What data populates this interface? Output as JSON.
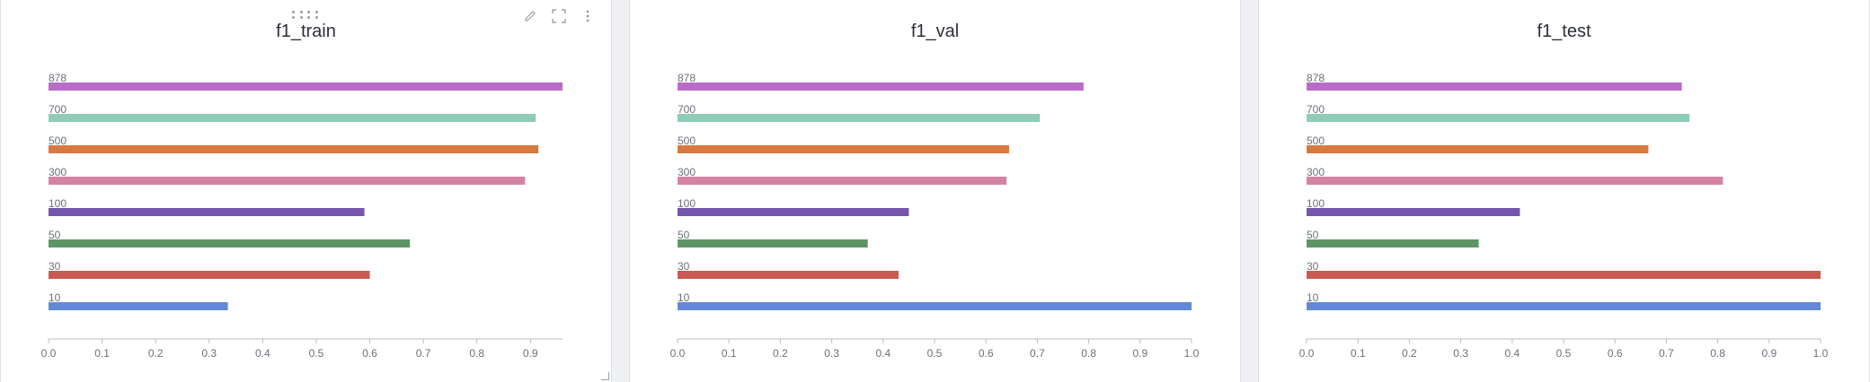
{
  "chart_data": [
    {
      "type": "bar",
      "orientation": "horizontal",
      "title": "f1_train",
      "categories": [
        "878",
        "700",
        "500",
        "300",
        "100",
        "50",
        "30",
        "10"
      ],
      "values": [
        0.96,
        0.91,
        0.915,
        0.89,
        0.59,
        0.675,
        0.6,
        0.335
      ],
      "xlim": [
        0,
        0.96
      ],
      "xticks": [
        "0.0",
        "0.1",
        "0.2",
        "0.3",
        "0.4",
        "0.5",
        "0.6",
        "0.7",
        "0.8",
        "0.9"
      ],
      "xtick_values": [
        0,
        0.1,
        0.2,
        0.3,
        0.4,
        0.5,
        0.6,
        0.7,
        0.8,
        0.9
      ]
    },
    {
      "type": "bar",
      "orientation": "horizontal",
      "title": "f1_val",
      "categories": [
        "878",
        "700",
        "500",
        "300",
        "100",
        "50",
        "30",
        "10"
      ],
      "values": [
        0.79,
        0.705,
        0.645,
        0.64,
        0.45,
        0.37,
        0.43,
        1.0
      ],
      "xlim": [
        0,
        1.0
      ],
      "xticks": [
        "0.0",
        "0.1",
        "0.2",
        "0.3",
        "0.4",
        "0.5",
        "0.6",
        "0.7",
        "0.8",
        "0.9",
        "1.0"
      ],
      "xtick_values": [
        0,
        0.1,
        0.2,
        0.3,
        0.4,
        0.5,
        0.6,
        0.7,
        0.8,
        0.9,
        1.0
      ]
    },
    {
      "type": "bar",
      "orientation": "horizontal",
      "title": "f1_test",
      "categories": [
        "878",
        "700",
        "500",
        "300",
        "100",
        "50",
        "30",
        "10"
      ],
      "values": [
        0.73,
        0.745,
        0.665,
        0.81,
        0.415,
        0.335,
        1.0,
        1.0
      ],
      "xlim": [
        0,
        1.0
      ],
      "xticks": [
        "0.0",
        "0.1",
        "0.2",
        "0.3",
        "0.4",
        "0.5",
        "0.6",
        "0.7",
        "0.8",
        "0.9",
        "1.0"
      ],
      "xtick_values": [
        0,
        0.1,
        0.2,
        0.3,
        0.4,
        0.5,
        0.6,
        0.7,
        0.8,
        0.9,
        1.0
      ]
    }
  ],
  "colors": {
    "878": "#b86cc6",
    "700": "#8fcbb8",
    "500": "#d77a3f",
    "300": "#d682a2",
    "100": "#7456ad",
    "50": "#5e9566",
    "30": "#c95a52",
    "10": "#6388d8"
  },
  "toolbar_icons": [
    "pencil-icon",
    "fullscreen-icon",
    "more-vertical-icon"
  ]
}
